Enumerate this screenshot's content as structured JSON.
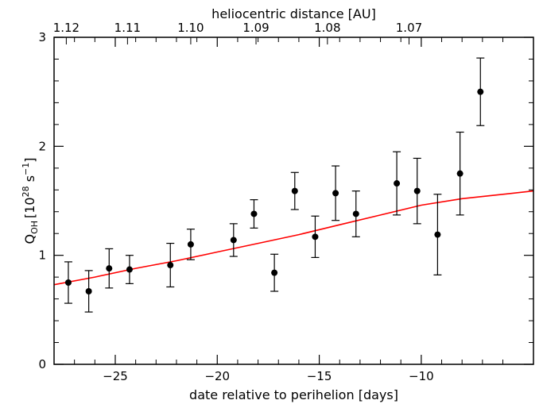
{
  "chart_data": {
    "type": "scatter",
    "xlabel": "date relative to perihelion [days]",
    "x2label": "heliocentric distance [AU]",
    "ylabel": {
      "main": "Q",
      "sub": "OH",
      "bracket_open": "[10",
      "exp1": "28",
      "mid": " s",
      "exp2": "−1",
      "bracket_close": "]"
    },
    "xlim": [
      -28,
      -4.5
    ],
    "ylim": [
      0,
      3
    ],
    "xticks": [
      {
        "value": -25,
        "label": "−25"
      },
      {
        "value": -20,
        "label": "−20"
      },
      {
        "value": -15,
        "label": "−15"
      },
      {
        "value": -10,
        "label": "−10"
      }
    ],
    "yticks": [
      {
        "value": 0,
        "label": "0"
      },
      {
        "value": 1,
        "label": "1"
      },
      {
        "value": 2,
        "label": "2"
      },
      {
        "value": 3,
        "label": "3"
      }
    ],
    "x2ticks": [
      {
        "value": -27.4,
        "label": "1.12"
      },
      {
        "value": -24.4,
        "label": "1.11"
      },
      {
        "value": -21.3,
        "label": "1.10"
      },
      {
        "value": -18.1,
        "label": "1.09"
      },
      {
        "value": -14.6,
        "label": "1.08"
      },
      {
        "value": -10.6,
        "label": "1.07"
      }
    ],
    "points": [
      {
        "x": -27.3,
        "y": 0.75,
        "err": 0.19
      },
      {
        "x": -26.3,
        "y": 0.67,
        "err": 0.19
      },
      {
        "x": -25.3,
        "y": 0.88,
        "err": 0.18
      },
      {
        "x": -24.3,
        "y": 0.87,
        "err": 0.13
      },
      {
        "x": -22.3,
        "y": 0.91,
        "err": 0.2
      },
      {
        "x": -21.3,
        "y": 1.1,
        "err": 0.14
      },
      {
        "x": -19.2,
        "y": 1.14,
        "err": 0.15
      },
      {
        "x": -18.2,
        "y": 1.38,
        "err": 0.13
      },
      {
        "x": -17.2,
        "y": 0.84,
        "err": 0.17
      },
      {
        "x": -16.2,
        "y": 1.59,
        "err": 0.17
      },
      {
        "x": -15.2,
        "y": 1.17,
        "err": 0.19
      },
      {
        "x": -14.2,
        "y": 1.57,
        "err": 0.25
      },
      {
        "x": -13.2,
        "y": 1.38,
        "err": 0.21
      },
      {
        "x": -11.2,
        "y": 1.66,
        "err": 0.29
      },
      {
        "x": -10.2,
        "y": 1.59,
        "err": 0.3
      },
      {
        "x": -9.2,
        "y": 1.19,
        "err": 0.37
      },
      {
        "x": -8.1,
        "y": 1.75,
        "err": 0.38
      },
      {
        "x": -7.1,
        "y": 2.5,
        "err": 0.31
      }
    ],
    "fit": {
      "color": "#ff0000",
      "x": [
        -28,
        -26,
        -24,
        -22,
        -20,
        -18,
        -16,
        -14,
        -12,
        -10,
        -8,
        -6,
        -4.5
      ],
      "y": [
        0.73,
        0.8,
        0.88,
        0.95,
        1.03,
        1.11,
        1.19,
        1.28,
        1.37,
        1.46,
        1.52,
        1.56,
        1.59
      ]
    },
    "grid": false,
    "legend": "none"
  },
  "colors": {
    "points": "#000000",
    "axes": "#000000",
    "fit": "#ff0000"
  }
}
